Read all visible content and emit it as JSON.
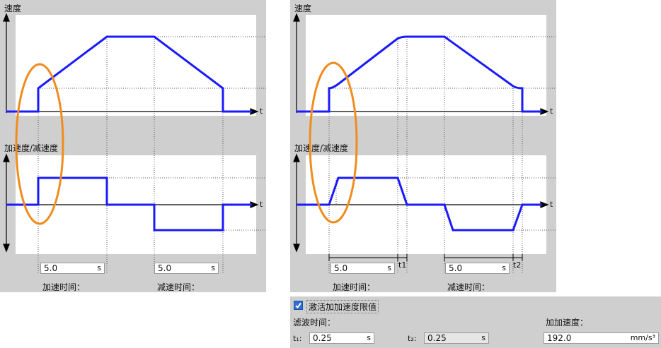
{
  "left": {
    "speed_title": "速度",
    "accel_title": "加速度/减速度",
    "t_label_top": "t",
    "t_label_bottom": "t",
    "accel_time_value": "5.0",
    "decel_time_value": "5.0",
    "unit_s": "s",
    "accel_time_label": "加速时间：",
    "decel_time_label": "减速时间："
  },
  "right": {
    "speed_title": "速度",
    "accel_title": "加速度/减速度",
    "t_label_top": "t",
    "t_label_bottom": "t",
    "accel_time_value": "5.0",
    "decel_time_value": "5.0",
    "unit_s": "s",
    "t1_label": "t1",
    "t2_label": "t2",
    "accel_time_label": "加速时间：",
    "decel_time_label": "减速时间："
  },
  "jerk": {
    "activate_label": "激活加加速度限值",
    "activate_checked": true,
    "filter_time_label": "滤波时间：",
    "jerk_label": "加加速度：",
    "t1_label": "t₁:",
    "t1_value": "0.25",
    "t2_label": "t₂:",
    "t2_value": "0.25",
    "unit_s": "s",
    "jerk_value": "192.0",
    "jerk_unit": "mm/s³"
  },
  "colors": {
    "curve": "#1a1aff",
    "highlight": "#f08c1e",
    "panel": "#cfcfcf"
  }
}
